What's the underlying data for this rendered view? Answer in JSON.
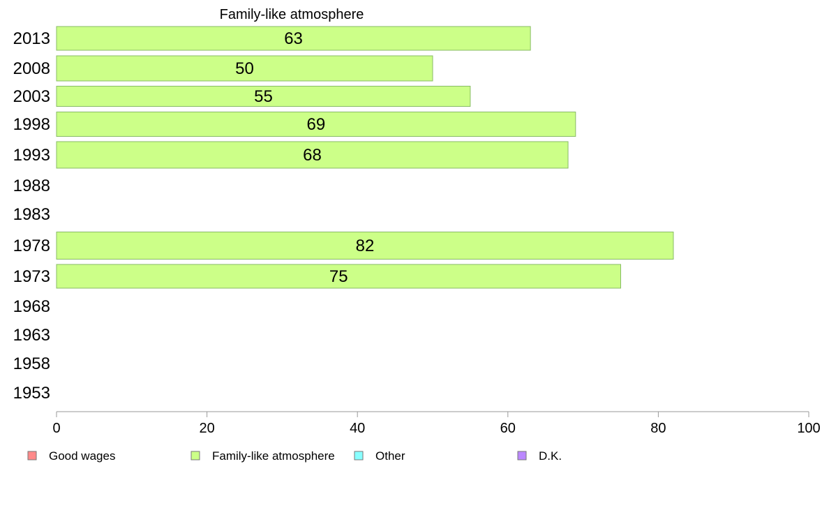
{
  "chart_data": {
    "type": "bar",
    "orientation": "horizontal",
    "title": "Family-like atmosphere",
    "categories": [
      "2013",
      "2008",
      "2003",
      "1998",
      "1993",
      "1988",
      "1983",
      "1978",
      "1973",
      "1968",
      "1963",
      "1958",
      "1953"
    ],
    "series": [
      {
        "name": "Family-like atmosphere",
        "color": "#ccff88",
        "values": [
          63,
          50,
          55,
          69,
          68,
          null,
          null,
          82,
          75,
          null,
          null,
          null,
          null
        ]
      }
    ],
    "xlim": [
      0,
      100
    ],
    "xticks": [
      "0",
      "20",
      "40",
      "60",
      "80",
      "100"
    ],
    "xlabel": "",
    "ylabel": "",
    "grid": false,
    "legend_position": "bottom",
    "legend": [
      {
        "label": "Good wages",
        "color": "#ff8a8a"
      },
      {
        "label": "Family-like atmosphere",
        "color": "#ccff88"
      },
      {
        "label": "Other",
        "color": "#88ffff"
      },
      {
        "label": "D.K.",
        "color": "#bb88ff"
      }
    ],
    "bar_edge_color": "#88bb66",
    "axis_color": "#999999"
  }
}
